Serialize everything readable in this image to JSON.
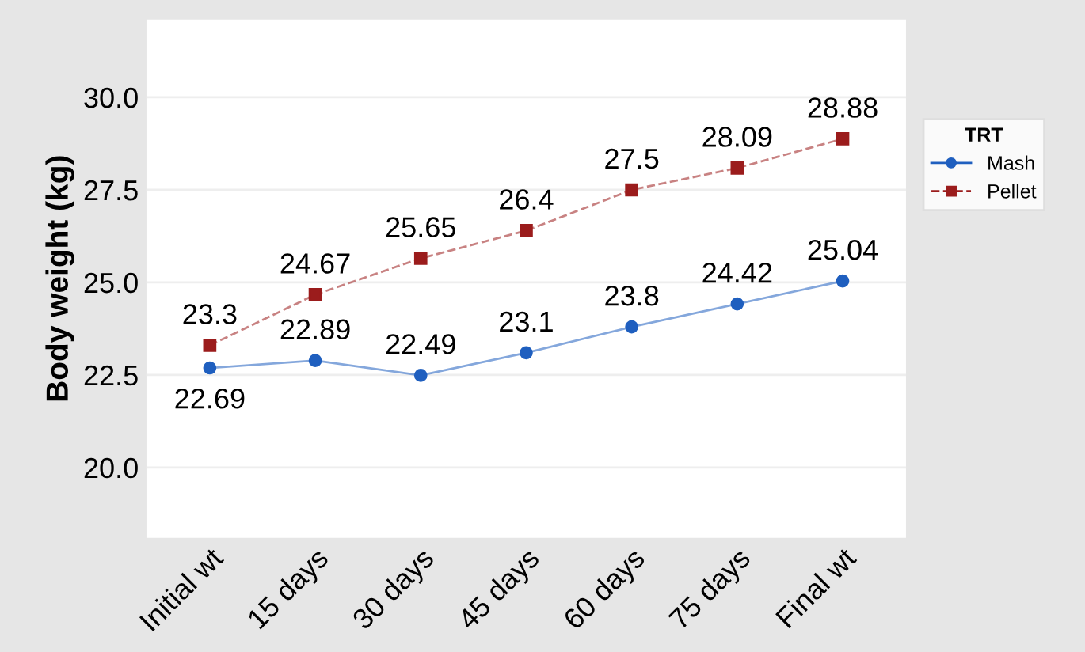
{
  "chart_data": {
    "type": "line",
    "ylabel": "Body weight (kg)",
    "legend_title": "TRT",
    "categories": [
      "Initial wt",
      "15 days",
      "30 days",
      "45 days",
      "60 days",
      "75 days",
      "Final wt"
    ],
    "series": [
      {
        "name": "Mash",
        "color": "#1f5fbf",
        "values": [
          22.69,
          22.89,
          22.49,
          23.1,
          23.8,
          24.42,
          25.04
        ],
        "marker": "circle",
        "line_style": "solid"
      },
      {
        "name": "Pellet",
        "color": "#9b1c1c",
        "values": [
          23.3,
          24.67,
          25.65,
          26.4,
          27.5,
          28.09,
          28.88
        ],
        "marker": "square",
        "line_style": "dashed"
      }
    ],
    "ylim": [
      18.1,
      32.1
    ],
    "yticks": [
      {
        "value": 20,
        "label": "20.0"
      },
      {
        "value": 22.5,
        "label": "22.5"
      },
      {
        "value": 25,
        "label": "25.0"
      },
      {
        "value": 27.5,
        "label": "27.5"
      },
      {
        "value": 30,
        "label": "30.0"
      }
    ],
    "grid": "y",
    "legend": "right",
    "data_labels": true
  }
}
